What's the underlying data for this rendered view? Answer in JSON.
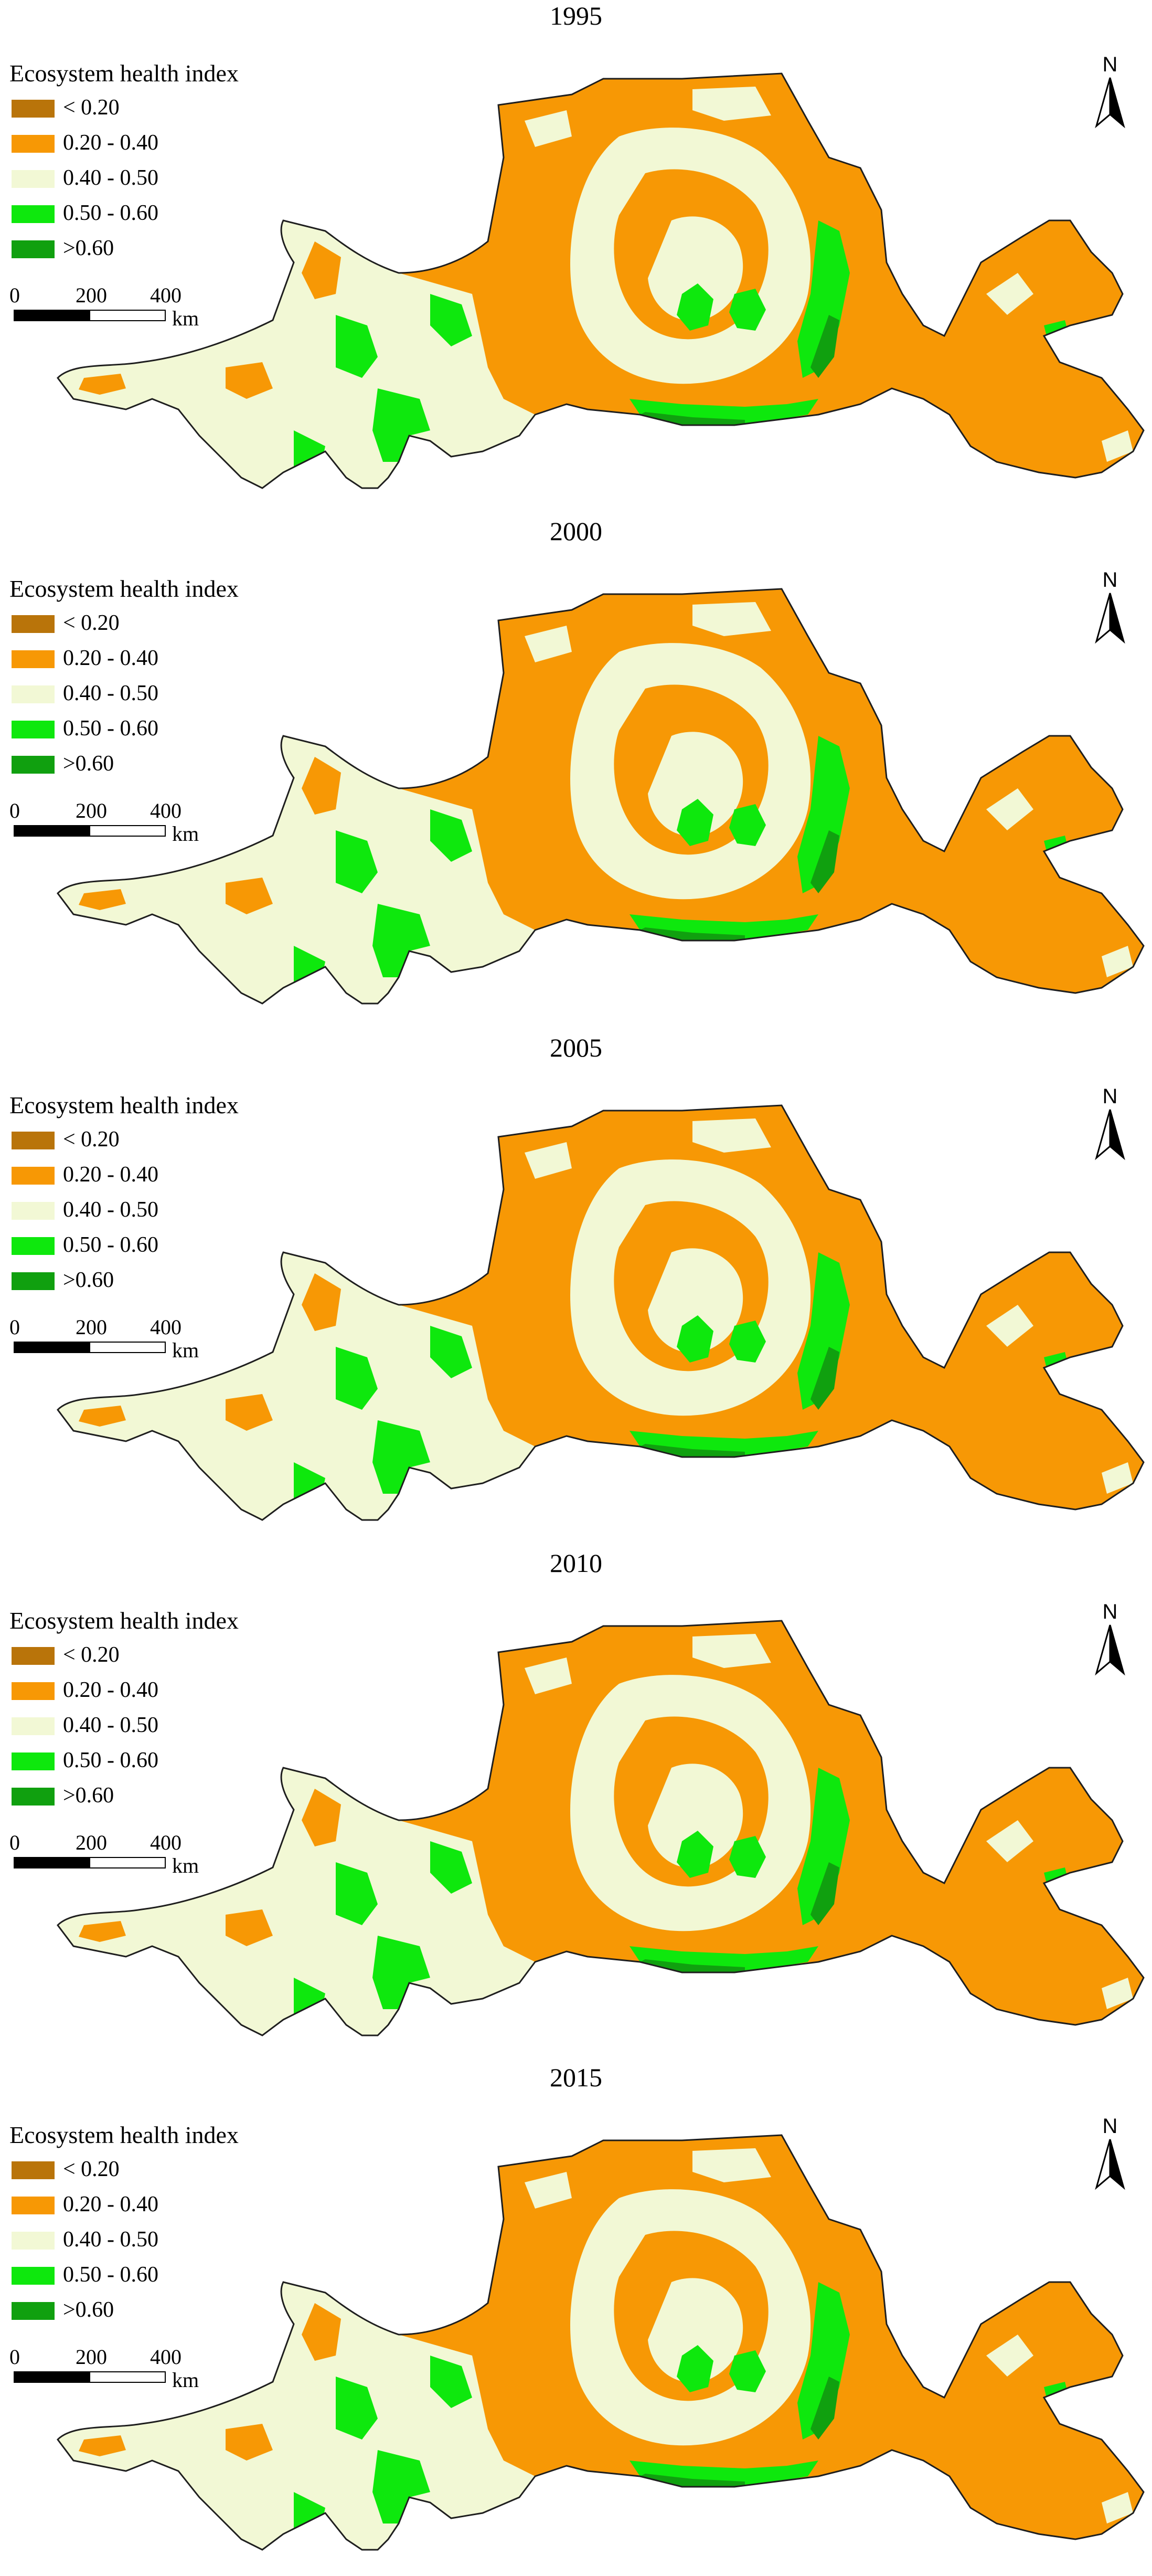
{
  "legend": {
    "title": "Ecosystem health index",
    "classes": [
      {
        "label": "< 0.20",
        "color": "#b9740a"
      },
      {
        "label": "0.20 - 0.40",
        "color": "#f79805"
      },
      {
        "label": "0.40 - 0.50",
        "color": "#f2f8d5"
      },
      {
        "label": "0.50 - 0.60",
        "color": "#0ee80d"
      },
      {
        "label": ">0.60",
        "color": "#10a00f"
      }
    ]
  },
  "scale": {
    "ticks": [
      "0",
      "200",
      "400"
    ],
    "unit": "km"
  },
  "north_arrow": {
    "label": "N",
    "icon": "north-arrow-icon"
  },
  "outline_color": "#1e1e1e",
  "panels": [
    {
      "year": "1995"
    },
    {
      "year": "2000"
    },
    {
      "year": "2005"
    },
    {
      "year": "2010"
    },
    {
      "year": "2015"
    }
  ]
}
